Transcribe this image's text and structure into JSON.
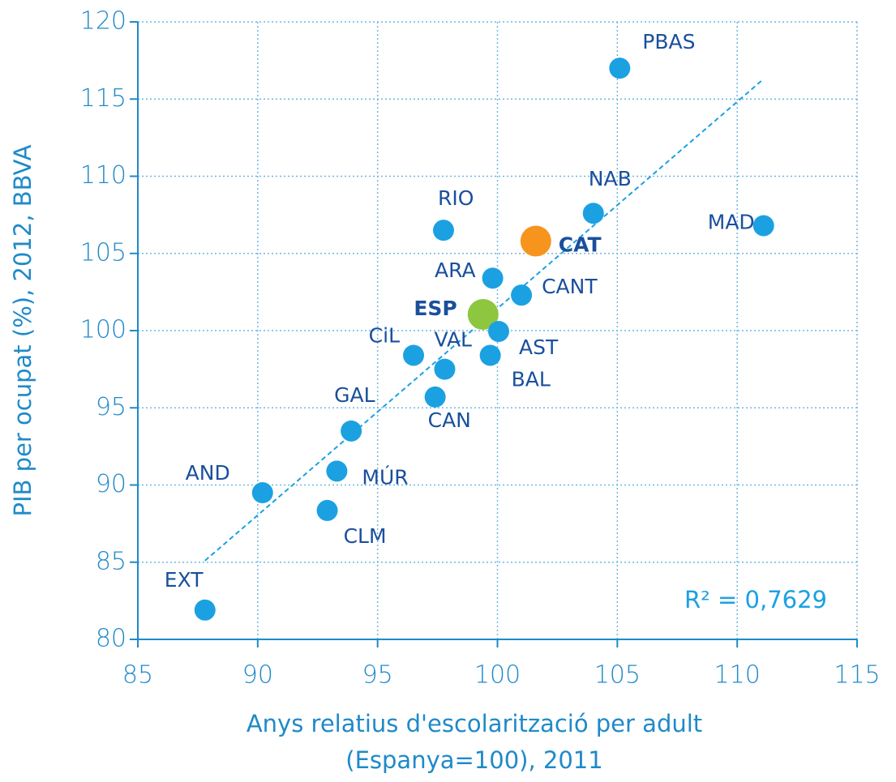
{
  "chart_data": {
    "type": "scatter",
    "x_label": [
      "Anys relatius d'escolarització per adult",
      "(Espanya=100), 2011"
    ],
    "y_label": "PIB per ocupat (%), 2012, BBVA",
    "annotation": "R² = 0,7629",
    "labels": [
      "PBAS",
      "NAB",
      "MAD",
      "RIO",
      "CAT",
      "ARA",
      "CANT",
      "ESP",
      "AST",
      "CiL",
      "BAL",
      "VAL",
      "CAN",
      "GAL",
      "MÚR",
      "AND",
      "CLM",
      "EXT"
    ],
    "x": [
      105.1,
      104.0,
      111.1,
      97.75,
      101.6,
      99.8,
      101.0,
      99.4,
      100.05,
      96.5,
      99.7,
      97.8,
      97.4,
      93.9,
      93.3,
      90.2,
      92.9,
      87.8
    ],
    "values": [
      117.0,
      107.6,
      106.8,
      106.5,
      105.8,
      103.4,
      102.3,
      101.05,
      99.95,
      98.4,
      98.4,
      97.5,
      95.7,
      93.5,
      90.9,
      89.5,
      88.35,
      81.9
    ],
    "colors": [
      "#1ba1e2",
      "#1ba1e2",
      "#1ba1e2",
      "#1ba1e2",
      "#f7941d",
      "#1ba1e2",
      "#1ba1e2",
      "#8dc63f",
      "#1ba1e2",
      "#1ba1e2",
      "#1ba1e2",
      "#1ba1e2",
      "#1ba1e2",
      "#1ba1e2",
      "#1ba1e2",
      "#1ba1e2",
      "#1ba1e2",
      "#1ba1e2"
    ],
    "highlight": [
      "CAT",
      "ESP"
    ],
    "trendline": {
      "x": [
        87.8,
        111.1
      ],
      "y": [
        85.1,
        116.3
      ],
      "color": "#1ba1e2"
    },
    "xlim": [
      85,
      115
    ],
    "xticks": [
      85,
      90,
      95,
      100,
      105,
      110,
      115
    ],
    "ylim": [
      80,
      120
    ],
    "yticks": [
      80,
      85,
      90,
      95,
      100,
      105,
      110,
      115,
      120
    ],
    "grid": true
  }
}
